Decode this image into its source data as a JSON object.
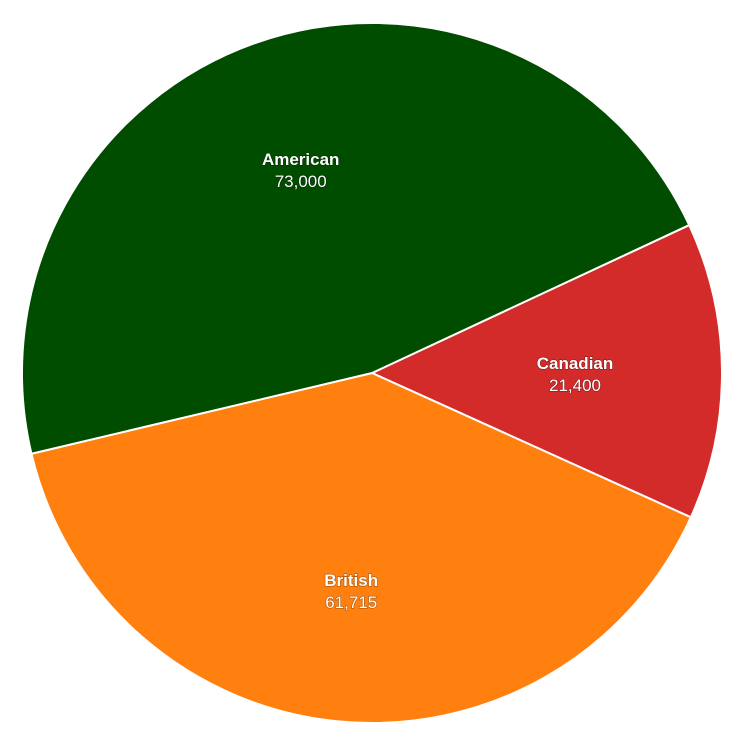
{
  "chart_data": {
    "type": "pie",
    "title": "",
    "slices": [
      {
        "name": "Canadian",
        "value": 21400,
        "value_label": "21,400",
        "color": "#d32a2a"
      },
      {
        "name": "British",
        "value": 61715,
        "value_label": "61,715",
        "color": "#ff800e"
      },
      {
        "name": "American",
        "value": 73000,
        "value_label": "73,000",
        "color": "#004d00"
      }
    ],
    "start_angle_deg": 65,
    "direction": "clockwise",
    "legend": "none",
    "labels_inside": true
  }
}
